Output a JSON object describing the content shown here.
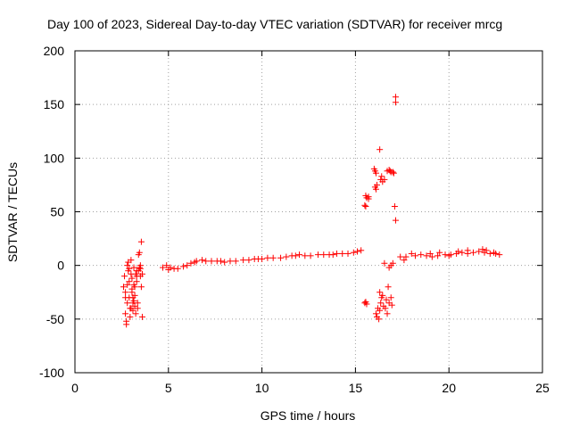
{
  "chart_data": {
    "type": "scatter",
    "title": "Day 100 of 2023, Sidereal Day-to-day VTEC variation (SDTVAR) for receiver mrcg",
    "xlabel": "GPS time / hours",
    "ylabel": "SDTVAR / TECUs",
    "xlim": [
      0,
      25
    ],
    "ylim": [
      -100,
      200
    ],
    "xticks": [
      0,
      5,
      10,
      15,
      20,
      25
    ],
    "yticks": [
      -100,
      -50,
      0,
      50,
      100,
      150,
      200
    ],
    "xtick_labels": [
      "0",
      "5",
      "10",
      "15",
      "20",
      "25"
    ],
    "ytick_labels": [
      "-100",
      "-50",
      "0",
      "50",
      "100",
      "150",
      "200"
    ],
    "grid": true,
    "marker": "+",
    "series_color": "#ff0000",
    "grid_color": "#a0a0a0",
    "series": [
      {
        "name": "SDTVAR",
        "points": [
          [
            2.6,
            -20
          ],
          [
            2.65,
            -10
          ],
          [
            2.7,
            -25
          ],
          [
            2.7,
            -45
          ],
          [
            2.75,
            -52
          ],
          [
            2.75,
            -55
          ],
          [
            2.8,
            -35
          ],
          [
            2.8,
            0
          ],
          [
            2.85,
            3
          ],
          [
            2.85,
            -5
          ],
          [
            2.9,
            -15
          ],
          [
            2.9,
            -30
          ],
          [
            2.95,
            -40
          ],
          [
            2.95,
            -48
          ],
          [
            3.0,
            -8
          ],
          [
            3.0,
            5
          ],
          [
            3.05,
            -12
          ],
          [
            3.05,
            -22
          ],
          [
            3.1,
            -35
          ],
          [
            3.1,
            -42
          ],
          [
            3.15,
            -2
          ],
          [
            3.15,
            -18
          ],
          [
            3.2,
            -28
          ],
          [
            3.2,
            -38
          ],
          [
            3.25,
            -45
          ],
          [
            3.3,
            -5
          ],
          [
            3.3,
            -15
          ],
          [
            3.35,
            -40
          ],
          [
            3.35,
            -35
          ],
          [
            3.4,
            10
          ],
          [
            3.45,
            12
          ],
          [
            3.5,
            0
          ],
          [
            3.5,
            -10
          ],
          [
            3.55,
            -20
          ],
          [
            3.55,
            22
          ],
          [
            3.6,
            -48
          ],
          [
            3.0,
            -40
          ],
          [
            3.1,
            -30
          ],
          [
            3.2,
            -20
          ],
          [
            3.3,
            -10
          ],
          [
            2.9,
            -3
          ],
          [
            3.05,
            -25
          ],
          [
            3.15,
            -33
          ],
          [
            3.25,
            -8
          ],
          [
            3.4,
            -5
          ],
          [
            3.5,
            -3
          ],
          [
            2.7,
            -30
          ],
          [
            2.8,
            -18
          ],
          [
            3.45,
            -2
          ],
          [
            3.6,
            -8
          ],
          [
            4.7,
            -2
          ],
          [
            4.9,
            0
          ],
          [
            5.1,
            -2
          ],
          [
            5.3,
            -3
          ],
          [
            5.5,
            -3
          ],
          [
            5.8,
            -1
          ],
          [
            6.0,
            0
          ],
          [
            6.2,
            2
          ],
          [
            6.5,
            4
          ],
          [
            6.8,
            5
          ],
          [
            7.0,
            4
          ],
          [
            7.3,
            4
          ],
          [
            7.6,
            4
          ],
          [
            8.0,
            3
          ],
          [
            8.3,
            4
          ],
          [
            8.6,
            4
          ],
          [
            9.0,
            5
          ],
          [
            9.3,
            5
          ],
          [
            9.6,
            6
          ],
          [
            10.0,
            6
          ],
          [
            10.3,
            7
          ],
          [
            10.6,
            7
          ],
          [
            11.0,
            7
          ],
          [
            11.3,
            8
          ],
          [
            11.6,
            9
          ],
          [
            12.0,
            10
          ],
          [
            12.3,
            9
          ],
          [
            12.6,
            9
          ],
          [
            13.0,
            10
          ],
          [
            13.3,
            10
          ],
          [
            13.6,
            10
          ],
          [
            14.0,
            11
          ],
          [
            14.3,
            11
          ],
          [
            14.6,
            11
          ],
          [
            14.9,
            12
          ],
          [
            15.1,
            13
          ],
          [
            15.3,
            14
          ],
          [
            5.0,
            -4
          ],
          [
            6.4,
            3
          ],
          [
            7.8,
            4
          ],
          [
            9.8,
            6
          ],
          [
            11.8,
            9
          ],
          [
            13.8,
            10
          ],
          [
            15.5,
            -35
          ],
          [
            15.6,
            -36
          ],
          [
            15.55,
            -34
          ],
          [
            15.5,
            56
          ],
          [
            15.55,
            55
          ],
          [
            15.55,
            65
          ],
          [
            15.6,
            63
          ],
          [
            15.7,
            64
          ],
          [
            15.7,
            62
          ],
          [
            16.0,
            90
          ],
          [
            16.05,
            88
          ],
          [
            16.1,
            86
          ],
          [
            16.05,
            73
          ],
          [
            16.1,
            71
          ],
          [
            16.15,
            75
          ],
          [
            16.3,
            108
          ],
          [
            16.35,
            80
          ],
          [
            16.4,
            83
          ],
          [
            16.45,
            78
          ],
          [
            16.55,
            80
          ],
          [
            16.2,
            -40
          ],
          [
            16.1,
            -45
          ],
          [
            16.15,
            -48
          ],
          [
            16.25,
            -50
          ],
          [
            16.3,
            -42
          ],
          [
            16.35,
            -35
          ],
          [
            16.4,
            -30
          ],
          [
            16.45,
            -28
          ],
          [
            16.3,
            -25
          ],
          [
            16.5,
            -38
          ],
          [
            16.6,
            -40
          ],
          [
            16.65,
            -32
          ],
          [
            16.7,
            -45
          ],
          [
            16.75,
            -20
          ],
          [
            16.8,
            -35
          ],
          [
            16.9,
            -30
          ],
          [
            16.95,
            -37
          ],
          [
            16.55,
            2
          ],
          [
            16.8,
            -2
          ],
          [
            16.9,
            0
          ],
          [
            17.0,
            2
          ],
          [
            16.7,
            88
          ],
          [
            16.8,
            89
          ],
          [
            16.85,
            88
          ],
          [
            16.9,
            87
          ],
          [
            17.0,
            87
          ],
          [
            17.05,
            86
          ],
          [
            17.1,
            55
          ],
          [
            17.15,
            42
          ],
          [
            17.15,
            152
          ],
          [
            17.15,
            157
          ],
          [
            17.4,
            8
          ],
          [
            17.6,
            5
          ],
          [
            17.7,
            8
          ],
          [
            18.2,
            9
          ],
          [
            18.5,
            10
          ],
          [
            18.8,
            9
          ],
          [
            19.1,
            8
          ],
          [
            19.4,
            9
          ],
          [
            19.8,
            10
          ],
          [
            20.1,
            10
          ],
          [
            20.4,
            11
          ],
          [
            20.7,
            12
          ],
          [
            21.0,
            11
          ],
          [
            21.3,
            12
          ],
          [
            21.6,
            13
          ],
          [
            21.9,
            12
          ],
          [
            22.2,
            11
          ],
          [
            22.5,
            11
          ],
          [
            22.7,
            10
          ],
          [
            18.0,
            11
          ],
          [
            19.0,
            11
          ],
          [
            20.0,
            9
          ],
          [
            21.0,
            14
          ],
          [
            21.8,
            15
          ],
          [
            22.0,
            14
          ],
          [
            22.4,
            12
          ],
          [
            19.5,
            12
          ],
          [
            20.5,
            13
          ]
        ]
      }
    ]
  }
}
